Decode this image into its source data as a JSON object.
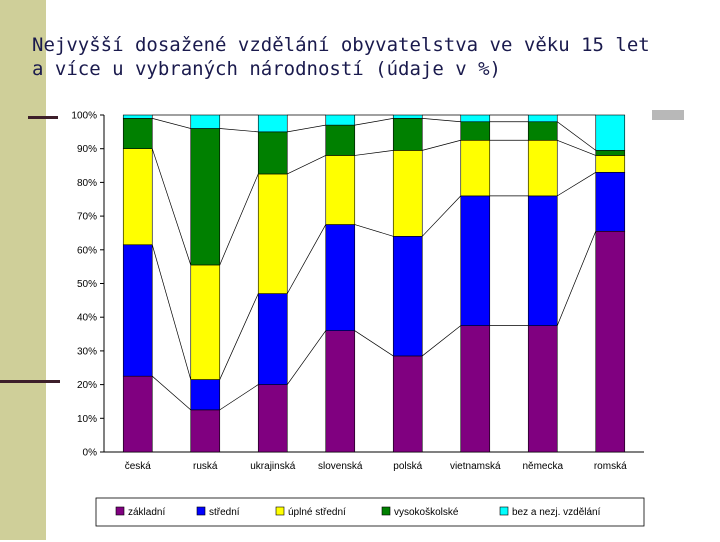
{
  "slide": {
    "title_line1": "Nejvyšší dosažené vzdělání obyvatelstva ve věku 15 let",
    "title_line2": "a více u vybraných národností (údaje v %)"
  },
  "chart_data": {
    "type": "bar",
    "stacked": true,
    "percent": true,
    "categories": [
      "česká",
      "ruská",
      "ukrajinská",
      "slovenská",
      "polská",
      "vietnamská",
      "německa",
      "romská"
    ],
    "yticks": [
      "0%",
      "10%",
      "20%",
      "30%",
      "40%",
      "50%",
      "60%",
      "70%",
      "80%",
      "90%",
      "100%"
    ],
    "ylim": [
      0,
      100
    ],
    "series": [
      {
        "name": "základní",
        "color": "#800080",
        "values": [
          22.5,
          12.5,
          20,
          36,
          28.5,
          37.5,
          37.5,
          65.5
        ]
      },
      {
        "name": "střední",
        "color": "#0000ff",
        "values": [
          39,
          9,
          27,
          31.5,
          35.5,
          38.5,
          38.5,
          17.5
        ]
      },
      {
        "name": "úplné střední",
        "color": "#ffff00",
        "values": [
          28.5,
          34,
          35.5,
          20.5,
          25.5,
          16.5,
          16.5,
          5
        ]
      },
      {
        "name": "vysokoškolské",
        "color": "#008000",
        "values": [
          9,
          40.5,
          12.5,
          9,
          9.5,
          5.5,
          5.5,
          1.5
        ]
      },
      {
        "name": "bez a nezj. vzdělání",
        "color": "#00ffff",
        "values": [
          1,
          4,
          5,
          3,
          1,
          2,
          2,
          10.5
        ]
      }
    ],
    "legend_position": "bottom",
    "grid": false
  }
}
